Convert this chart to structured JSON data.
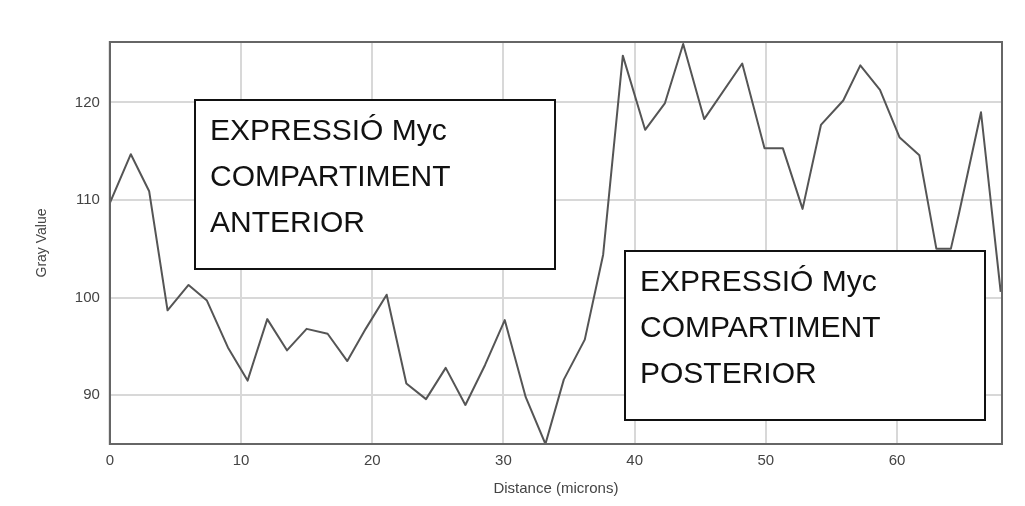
{
  "chart_data": {
    "type": "line",
    "xlabel": "Distance (microns)",
    "ylabel": "Gray Value",
    "x": [
      0,
      1.6,
      3.0,
      4.4,
      6.0,
      7.4,
      9.0,
      10.5,
      12.0,
      13.5,
      15.0,
      16.6,
      18.1,
      19.5,
      21.1,
      22.6,
      24.1,
      25.6,
      27.1,
      28.6,
      30.1,
      31.7,
      33.2,
      34.6,
      36.2,
      37.6,
      39.1,
      40.8,
      42.3,
      43.7,
      45.3,
      48.2,
      49.9,
      51.3,
      52.8,
      54.2,
      55.9,
      57.2,
      58.7,
      60.2,
      61.7,
      63.0,
      64.1,
      64.7,
      66.4,
      67.9
    ],
    "series": [
      {
        "color": "#555555",
        "values": [
          109.7,
          114.7,
          110.9,
          98.7,
          101.3,
          99.7,
          94.9,
          91.5,
          97.8,
          94.6,
          96.8,
          96.3,
          93.5,
          96.8,
          100.3,
          91.2,
          89.6,
          92.8,
          89.0,
          93.1,
          97.7,
          89.8,
          85,
          91.6,
          95.7,
          104.4,
          124.8,
          117.2,
          119.9,
          126,
          118.3,
          124.0,
          115.3,
          115.3,
          109.1,
          117.7,
          120.2,
          123.8,
          121.3,
          116.4,
          114.6,
          105,
          105,
          108.5,
          119.0,
          100.6
        ]
      }
    ],
    "xlim": [
      0,
      68
    ],
    "ylim": [
      85,
      126.2
    ],
    "xticks": [
      0,
      10,
      20,
      30,
      40,
      50,
      60
    ],
    "yticks": [
      90,
      100,
      110,
      120
    ],
    "grid": true,
    "marker": "none",
    "line_style": "solid",
    "annotations": [
      "EXPRESSIÓ Myc\nCOMPARTIMENT\nANTERIOR",
      "EXPRESSIÓ Myc\nCOMPARTIMENT\nPOSTERIOR"
    ]
  }
}
